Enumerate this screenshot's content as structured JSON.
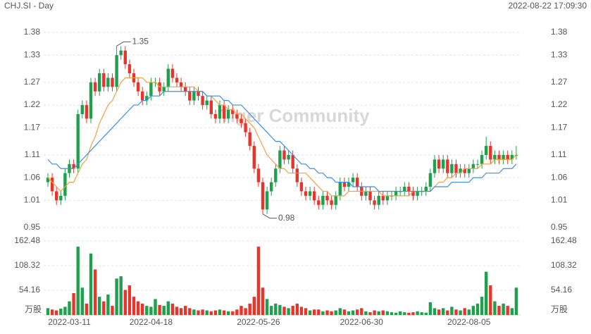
{
  "chart_data": {
    "type": "candlestick",
    "title": "CHJ.SI - Day",
    "timestamp": "2022-08-22 17:09:30",
    "watermark": "Tiger Community",
    "categories": [
      null,
      null,
      null,
      null,
      null,
      "2022-03-11",
      null,
      null,
      null,
      null,
      null,
      null,
      null,
      null,
      null,
      null,
      null,
      null,
      null,
      null,
      null,
      null,
      null,
      null,
      "2022-04-18",
      null,
      null,
      null,
      null,
      null,
      null,
      null,
      null,
      null,
      null,
      null,
      null,
      null,
      null,
      null,
      null,
      null,
      null,
      null,
      null,
      null,
      null,
      null,
      null,
      "2022-05-26",
      null,
      null,
      null,
      null,
      null,
      null,
      null,
      null,
      null,
      null,
      null,
      null,
      null,
      null,
      null,
      null,
      null,
      null,
      null,
      null,
      null,
      null,
      null,
      "2022-06-30",
      null,
      null,
      null,
      null,
      null,
      null,
      null,
      null,
      null,
      null,
      null,
      null,
      null,
      null,
      null,
      null,
      null,
      null,
      null,
      null,
      null,
      null,
      null,
      null,
      "2022-08-05",
      null,
      null,
      null,
      null,
      null,
      null,
      null,
      null,
      null,
      null,
      null
    ],
    "open": [
      1.05,
      1.06,
      1.03,
      1.01,
      1.02,
      1.07,
      1.09,
      1.08,
      1.2,
      1.22,
      1.19,
      1.27,
      1.25,
      1.29,
      1.26,
      1.28,
      1.26,
      1.33,
      1.34,
      1.31,
      1.29,
      1.27,
      1.25,
      1.23,
      1.24,
      1.27,
      1.27,
      1.25,
      1.26,
      1.3,
      1.28,
      1.27,
      1.26,
      1.25,
      1.23,
      1.25,
      1.24,
      1.22,
      1.23,
      1.2,
      1.19,
      1.22,
      1.19,
      1.21,
      1.2,
      1.19,
      1.18,
      1.16,
      1.13,
      1.08,
      1.05,
      0.99,
      1.03,
      1.05,
      1.08,
      1.12,
      1.1,
      1.11,
      1.08,
      1.05,
      1.03,
      1.02,
      1.03,
      1.01,
      1.0,
      1.02,
      1.01,
      1.0,
      1.02,
      1.05,
      1.04,
      1.05,
      1.06,
      1.04,
      1.02,
      1.03,
      1.01,
      1.0,
      1.02,
      1.01,
      1.02,
      1.02,
      1.03,
      1.03,
      1.04,
      1.03,
      1.02,
      1.03,
      1.03,
      1.04,
      1.07,
      1.1,
      1.08,
      1.1,
      1.07,
      1.09,
      1.07,
      1.08,
      1.07,
      1.08,
      1.09,
      1.09,
      1.11,
      1.13,
      1.1,
      1.11,
      1.1,
      1.11,
      1.1,
      1.11
    ],
    "high": [
      1.07,
      1.07,
      1.04,
      1.03,
      1.08,
      1.1,
      1.1,
      1.21,
      1.23,
      1.23,
      1.28,
      1.28,
      1.3,
      1.3,
      1.29,
      1.29,
      1.35,
      1.35,
      1.35,
      1.32,
      1.3,
      1.28,
      1.26,
      1.25,
      1.28,
      1.28,
      1.28,
      1.27,
      1.31,
      1.31,
      1.29,
      1.28,
      1.27,
      1.26,
      1.26,
      1.26,
      1.25,
      1.24,
      1.24,
      1.21,
      1.23,
      1.23,
      1.22,
      1.22,
      1.21,
      1.2,
      1.19,
      1.17,
      1.14,
      1.09,
      1.06,
      1.04,
      1.06,
      1.09,
      1.13,
      1.13,
      1.12,
      1.12,
      1.09,
      1.06,
      1.04,
      1.04,
      1.04,
      1.02,
      1.03,
      1.03,
      1.02,
      1.03,
      1.06,
      1.06,
      1.06,
      1.07,
      1.07,
      1.05,
      1.04,
      1.04,
      1.02,
      1.03,
      1.03,
      1.03,
      1.03,
      1.04,
      1.04,
      1.05,
      1.05,
      1.04,
      1.04,
      1.04,
      1.05,
      1.08,
      1.11,
      1.11,
      1.11,
      1.11,
      1.1,
      1.1,
      1.09,
      1.09,
      1.09,
      1.1,
      1.1,
      1.12,
      1.15,
      1.14,
      1.12,
      1.12,
      1.12,
      1.12,
      1.12,
      1.13
    ],
    "low": [
      1.04,
      1.02,
      1.0,
      1.0,
      1.01,
      1.06,
      1.07,
      1.07,
      1.19,
      1.18,
      1.18,
      1.24,
      1.24,
      1.25,
      1.25,
      1.25,
      1.25,
      1.32,
      1.3,
      1.28,
      1.26,
      1.24,
      1.22,
      1.22,
      1.23,
      1.26,
      1.24,
      1.24,
      1.25,
      1.27,
      1.26,
      1.25,
      1.24,
      1.22,
      1.22,
      1.23,
      1.21,
      1.21,
      1.19,
      1.18,
      1.18,
      1.18,
      1.18,
      1.19,
      1.18,
      1.17,
      1.15,
      1.12,
      1.07,
      1.04,
      0.98,
      0.98,
      1.02,
      1.04,
      1.07,
      1.09,
      1.09,
      1.07,
      1.04,
      1.02,
      1.01,
      1.01,
      1.0,
      0.99,
      0.99,
      1.0,
      0.99,
      0.99,
      1.01,
      1.03,
      1.03,
      1.04,
      1.03,
      1.01,
      1.01,
      1.0,
      0.99,
      0.99,
      1.0,
      1.0,
      1.01,
      1.01,
      1.02,
      1.02,
      1.02,
      1.01,
      1.01,
      1.02,
      1.02,
      1.03,
      1.06,
      1.07,
      1.07,
      1.06,
      1.06,
      1.06,
      1.06,
      1.06,
      1.06,
      1.07,
      1.08,
      1.08,
      1.1,
      1.09,
      1.09,
      1.09,
      1.09,
      1.09,
      1.09,
      1.1
    ],
    "close": [
      1.06,
      1.03,
      1.01,
      1.02,
      1.07,
      1.09,
      1.08,
      1.2,
      1.22,
      1.19,
      1.27,
      1.25,
      1.29,
      1.26,
      1.28,
      1.26,
      1.33,
      1.34,
      1.31,
      1.29,
      1.27,
      1.25,
      1.23,
      1.24,
      1.27,
      1.27,
      1.25,
      1.26,
      1.3,
      1.28,
      1.27,
      1.26,
      1.25,
      1.23,
      1.25,
      1.24,
      1.22,
      1.23,
      1.2,
      1.19,
      1.22,
      1.19,
      1.21,
      1.2,
      1.19,
      1.18,
      1.16,
      1.13,
      1.08,
      1.05,
      0.99,
      1.03,
      1.05,
      1.08,
      1.12,
      1.1,
      1.11,
      1.08,
      1.05,
      1.03,
      1.02,
      1.03,
      1.01,
      1.0,
      1.02,
      1.01,
      1.0,
      1.02,
      1.05,
      1.04,
      1.05,
      1.06,
      1.04,
      1.02,
      1.03,
      1.01,
      1.0,
      1.02,
      1.01,
      1.02,
      1.02,
      1.03,
      1.03,
      1.04,
      1.03,
      1.02,
      1.03,
      1.03,
      1.04,
      1.07,
      1.1,
      1.08,
      1.1,
      1.07,
      1.09,
      1.07,
      1.08,
      1.07,
      1.08,
      1.09,
      1.09,
      1.11,
      1.13,
      1.1,
      1.11,
      1.1,
      1.11,
      1.1,
      1.11,
      1.11
    ],
    "volume": [
      15,
      12,
      10,
      14,
      18,
      30,
      48,
      150,
      60,
      25,
      135,
      100,
      40,
      30,
      45,
      20,
      80,
      85,
      55,
      65,
      40,
      30,
      25,
      20,
      18,
      35,
      22,
      20,
      30,
      25,
      18,
      15,
      20,
      15,
      12,
      10,
      12,
      10,
      8,
      10,
      12,
      10,
      8,
      8,
      12,
      20,
      15,
      25,
      40,
      150,
      60,
      35,
      20,
      25,
      22,
      18,
      15,
      20,
      25,
      18,
      15,
      10,
      12,
      12,
      8,
      10,
      8,
      10,
      15,
      12,
      8,
      10,
      12,
      15,
      8,
      6,
      10,
      8,
      10,
      8,
      6,
      5,
      8,
      6,
      5,
      6,
      8,
      6,
      5,
      28,
      15,
      12,
      15,
      10,
      18,
      12,
      10,
      15,
      12,
      20,
      25,
      40,
      95,
      65,
      30,
      20,
      25,
      20,
      15,
      60
    ],
    "volume_unit": "万股",
    "ylim": [
      0.95,
      1.38
    ],
    "yticks": [
      0.95,
      1.01,
      1.06,
      1.11,
      1.17,
      1.22,
      1.27,
      1.33,
      1.38
    ],
    "volume_ylim": [
      0,
      162.48
    ],
    "volume_yticks": [
      54.16,
      108.32,
      162.48
    ],
    "moving_averages": [
      {
        "color": "#f0a040",
        "values": [
          1.06,
          1.05,
          1.04,
          1.03,
          1.04,
          1.05,
          1.05,
          1.07,
          1.09,
          1.1,
          1.13,
          1.15,
          1.18,
          1.2,
          1.22,
          1.23,
          1.25,
          1.27,
          1.28,
          1.28,
          1.28,
          1.28,
          1.28,
          1.27,
          1.27,
          1.27,
          1.26,
          1.26,
          1.26,
          1.26,
          1.26,
          1.26,
          1.26,
          1.26,
          1.26,
          1.25,
          1.25,
          1.24,
          1.24,
          1.23,
          1.22,
          1.22,
          1.21,
          1.21,
          1.2,
          1.2,
          1.19,
          1.18,
          1.17,
          1.15,
          1.13,
          1.11,
          1.1,
          1.09,
          1.08,
          1.08,
          1.07,
          1.07,
          1.07,
          1.07,
          1.07,
          1.06,
          1.05,
          1.04,
          1.03,
          1.03,
          1.02,
          1.02,
          1.02,
          1.02,
          1.03,
          1.03,
          1.03,
          1.03,
          1.03,
          1.03,
          1.03,
          1.03,
          1.02,
          1.02,
          1.02,
          1.02,
          1.02,
          1.02,
          1.02,
          1.03,
          1.03,
          1.03,
          1.03,
          1.03,
          1.04,
          1.05,
          1.05,
          1.06,
          1.06,
          1.07,
          1.07,
          1.08,
          1.08,
          1.08,
          1.08,
          1.09,
          1.09,
          1.09,
          1.1,
          1.1,
          1.1,
          1.1,
          1.1,
          1.11
        ]
      },
      {
        "color": "#3a8ee6",
        "values": [
          1.1,
          1.09,
          1.09,
          1.08,
          1.08,
          1.08,
          1.08,
          1.09,
          1.1,
          1.11,
          1.12,
          1.13,
          1.14,
          1.15,
          1.16,
          1.17,
          1.18,
          1.19,
          1.2,
          1.21,
          1.22,
          1.22,
          1.23,
          1.23,
          1.24,
          1.24,
          1.24,
          1.25,
          1.25,
          1.25,
          1.25,
          1.25,
          1.25,
          1.25,
          1.25,
          1.25,
          1.25,
          1.24,
          1.24,
          1.24,
          1.24,
          1.23,
          1.23,
          1.22,
          1.22,
          1.22,
          1.21,
          1.2,
          1.19,
          1.18,
          1.17,
          1.16,
          1.15,
          1.14,
          1.14,
          1.13,
          1.12,
          1.11,
          1.1,
          1.09,
          1.09,
          1.08,
          1.08,
          1.07,
          1.07,
          1.06,
          1.06,
          1.05,
          1.05,
          1.05,
          1.05,
          1.04,
          1.04,
          1.04,
          1.04,
          1.04,
          1.04,
          1.03,
          1.03,
          1.03,
          1.03,
          1.03,
          1.03,
          1.03,
          1.03,
          1.03,
          1.03,
          1.03,
          1.03,
          1.03,
          1.04,
          1.04,
          1.04,
          1.04,
          1.05,
          1.05,
          1.05,
          1.05,
          1.05,
          1.06,
          1.06,
          1.06,
          1.07,
          1.07,
          1.07,
          1.07,
          1.08,
          1.08,
          1.08,
          1.09
        ]
      }
    ],
    "up_color": "#1fa04c",
    "down_color": "#e8352b",
    "grid": true
  }
}
